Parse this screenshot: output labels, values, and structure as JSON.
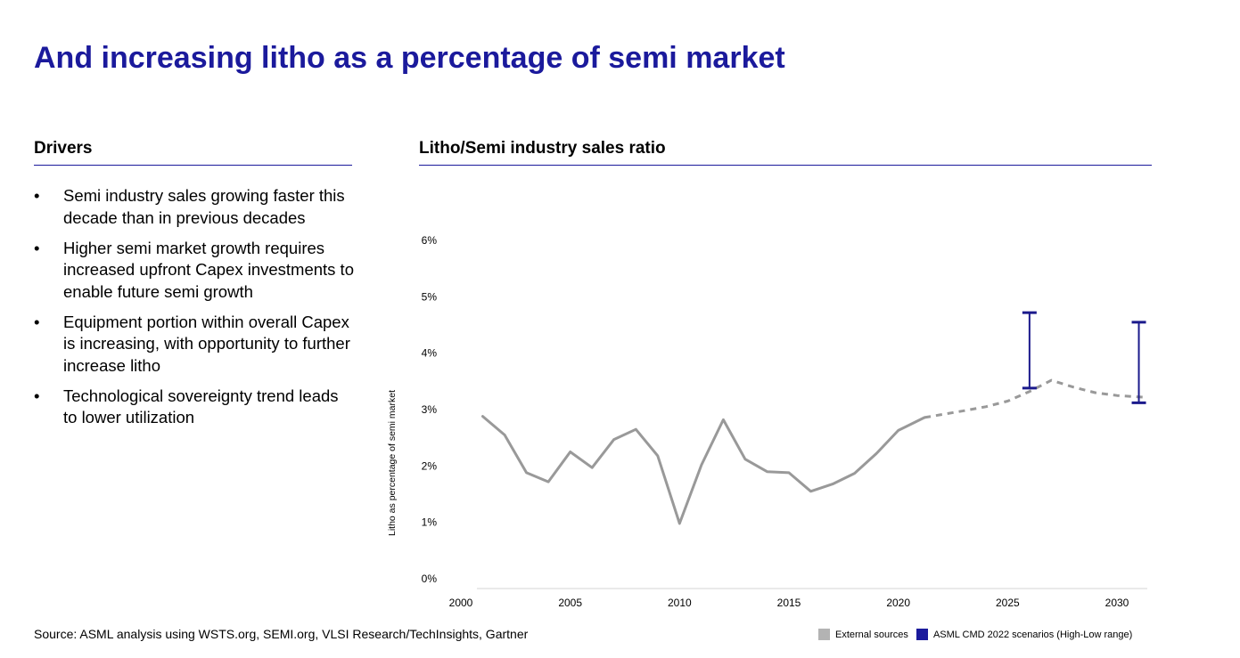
{
  "page": {
    "title": "And increasing litho as a percentage of semi market"
  },
  "drivers": {
    "heading": "Drivers",
    "bullet_symbol": "•",
    "items": [
      "Semi industry sales growing faster this decade than in previous decades",
      "Higher semi market growth requires increased upfront Capex investments to enable future semi growth",
      "Equipment portion within overall Capex is increasing, with opportunity to further increase litho",
      "Technological sovereignty trend leads to lower utilization"
    ]
  },
  "chart_heading": "Litho/Semi industry sales ratio",
  "source": "Source: ASML analysis using WSTS.org, SEMI.org, VLSI Research/TechInsights, Gartner",
  "legend": {
    "external": "External sources",
    "asml": "ASML CMD 2022 scenarios (High-Low range)"
  },
  "colors": {
    "accent": "#1b1a9c",
    "history_line": "#999999",
    "asml_range": "#1b1a8c"
  },
  "chart_data": {
    "type": "line",
    "ylabel": "Litho as percentage of semi market",
    "xlim": [
      2000,
      2031.5
    ],
    "ylim": [
      0,
      6
    ],
    "x_ticks": [
      "2000",
      "2005",
      "2010",
      "2015",
      "2020",
      "2025",
      "2030"
    ],
    "y_ticks": [
      "0%",
      "1%",
      "2%",
      "3%",
      "4%",
      "5%",
      "6%"
    ],
    "series": [
      {
        "name": "External sources",
        "style": "solid",
        "x": [
          2001,
          2002,
          2003,
          2004,
          2005,
          2006,
          2007,
          2008,
          2009,
          2010,
          2011,
          2012,
          2013,
          2014,
          2015,
          2016,
          2017,
          2018,
          2019,
          2020,
          2021.2
        ],
        "y": [
          2.88,
          2.55,
          1.88,
          1.72,
          2.25,
          1.97,
          2.47,
          2.65,
          2.18,
          0.98,
          2.02,
          2.82,
          2.12,
          1.9,
          1.88,
          1.55,
          1.68,
          1.87,
          2.22,
          2.63,
          2.86
        ]
      },
      {
        "name": "External sources (projection)",
        "style": "dashed",
        "x": [
          2021.2,
          2023,
          2024,
          2025,
          2026,
          2027,
          2028,
          2029,
          2030,
          2031.2
        ],
        "y": [
          2.86,
          2.98,
          3.05,
          3.15,
          3.32,
          3.52,
          3.4,
          3.3,
          3.25,
          3.22
        ]
      }
    ],
    "error_bars": [
      {
        "name": "ASML CMD 2022 scenarios (High-Low range)",
        "x": 2026,
        "low": 3.38,
        "high": 4.72
      },
      {
        "name": "ASML CMD 2022 scenarios (High-Low range)",
        "x": 2031,
        "low": 3.12,
        "high": 4.55
      }
    ],
    "grid": false,
    "legend_position": "bottom-right"
  }
}
